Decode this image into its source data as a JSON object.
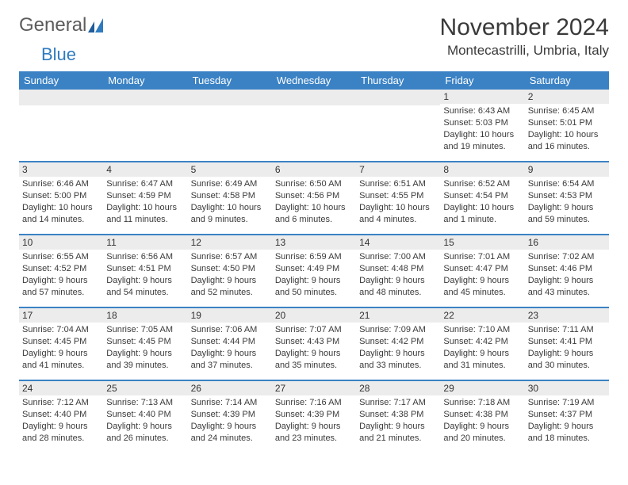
{
  "logo": {
    "text1": "General",
    "text2": "Blue"
  },
  "title": "November 2024",
  "location": "Montecastrilli, Umbria, Italy",
  "colors": {
    "header_bg": "#3b82c4",
    "header_text": "#ffffff",
    "daynum_bg": "#ececec",
    "border": "#3b82c4",
    "text": "#3a3a3a"
  },
  "day_headers": [
    "Sunday",
    "Monday",
    "Tuesday",
    "Wednesday",
    "Thursday",
    "Friday",
    "Saturday"
  ],
  "weeks": [
    [
      {
        "day": "",
        "sunrise": "",
        "sunset": "",
        "daylight": ""
      },
      {
        "day": "",
        "sunrise": "",
        "sunset": "",
        "daylight": ""
      },
      {
        "day": "",
        "sunrise": "",
        "sunset": "",
        "daylight": ""
      },
      {
        "day": "",
        "sunrise": "",
        "sunset": "",
        "daylight": ""
      },
      {
        "day": "",
        "sunrise": "",
        "sunset": "",
        "daylight": ""
      },
      {
        "day": "1",
        "sunrise": "Sunrise: 6:43 AM",
        "sunset": "Sunset: 5:03 PM",
        "daylight": "Daylight: 10 hours and 19 minutes."
      },
      {
        "day": "2",
        "sunrise": "Sunrise: 6:45 AM",
        "sunset": "Sunset: 5:01 PM",
        "daylight": "Daylight: 10 hours and 16 minutes."
      }
    ],
    [
      {
        "day": "3",
        "sunrise": "Sunrise: 6:46 AM",
        "sunset": "Sunset: 5:00 PM",
        "daylight": "Daylight: 10 hours and 14 minutes."
      },
      {
        "day": "4",
        "sunrise": "Sunrise: 6:47 AM",
        "sunset": "Sunset: 4:59 PM",
        "daylight": "Daylight: 10 hours and 11 minutes."
      },
      {
        "day": "5",
        "sunrise": "Sunrise: 6:49 AM",
        "sunset": "Sunset: 4:58 PM",
        "daylight": "Daylight: 10 hours and 9 minutes."
      },
      {
        "day": "6",
        "sunrise": "Sunrise: 6:50 AM",
        "sunset": "Sunset: 4:56 PM",
        "daylight": "Daylight: 10 hours and 6 minutes."
      },
      {
        "day": "7",
        "sunrise": "Sunrise: 6:51 AM",
        "sunset": "Sunset: 4:55 PM",
        "daylight": "Daylight: 10 hours and 4 minutes."
      },
      {
        "day": "8",
        "sunrise": "Sunrise: 6:52 AM",
        "sunset": "Sunset: 4:54 PM",
        "daylight": "Daylight: 10 hours and 1 minute."
      },
      {
        "day": "9",
        "sunrise": "Sunrise: 6:54 AM",
        "sunset": "Sunset: 4:53 PM",
        "daylight": "Daylight: 9 hours and 59 minutes."
      }
    ],
    [
      {
        "day": "10",
        "sunrise": "Sunrise: 6:55 AM",
        "sunset": "Sunset: 4:52 PM",
        "daylight": "Daylight: 9 hours and 57 minutes."
      },
      {
        "day": "11",
        "sunrise": "Sunrise: 6:56 AM",
        "sunset": "Sunset: 4:51 PM",
        "daylight": "Daylight: 9 hours and 54 minutes."
      },
      {
        "day": "12",
        "sunrise": "Sunrise: 6:57 AM",
        "sunset": "Sunset: 4:50 PM",
        "daylight": "Daylight: 9 hours and 52 minutes."
      },
      {
        "day": "13",
        "sunrise": "Sunrise: 6:59 AM",
        "sunset": "Sunset: 4:49 PM",
        "daylight": "Daylight: 9 hours and 50 minutes."
      },
      {
        "day": "14",
        "sunrise": "Sunrise: 7:00 AM",
        "sunset": "Sunset: 4:48 PM",
        "daylight": "Daylight: 9 hours and 48 minutes."
      },
      {
        "day": "15",
        "sunrise": "Sunrise: 7:01 AM",
        "sunset": "Sunset: 4:47 PM",
        "daylight": "Daylight: 9 hours and 45 minutes."
      },
      {
        "day": "16",
        "sunrise": "Sunrise: 7:02 AM",
        "sunset": "Sunset: 4:46 PM",
        "daylight": "Daylight: 9 hours and 43 minutes."
      }
    ],
    [
      {
        "day": "17",
        "sunrise": "Sunrise: 7:04 AM",
        "sunset": "Sunset: 4:45 PM",
        "daylight": "Daylight: 9 hours and 41 minutes."
      },
      {
        "day": "18",
        "sunrise": "Sunrise: 7:05 AM",
        "sunset": "Sunset: 4:45 PM",
        "daylight": "Daylight: 9 hours and 39 minutes."
      },
      {
        "day": "19",
        "sunrise": "Sunrise: 7:06 AM",
        "sunset": "Sunset: 4:44 PM",
        "daylight": "Daylight: 9 hours and 37 minutes."
      },
      {
        "day": "20",
        "sunrise": "Sunrise: 7:07 AM",
        "sunset": "Sunset: 4:43 PM",
        "daylight": "Daylight: 9 hours and 35 minutes."
      },
      {
        "day": "21",
        "sunrise": "Sunrise: 7:09 AM",
        "sunset": "Sunset: 4:42 PM",
        "daylight": "Daylight: 9 hours and 33 minutes."
      },
      {
        "day": "22",
        "sunrise": "Sunrise: 7:10 AM",
        "sunset": "Sunset: 4:42 PM",
        "daylight": "Daylight: 9 hours and 31 minutes."
      },
      {
        "day": "23",
        "sunrise": "Sunrise: 7:11 AM",
        "sunset": "Sunset: 4:41 PM",
        "daylight": "Daylight: 9 hours and 30 minutes."
      }
    ],
    [
      {
        "day": "24",
        "sunrise": "Sunrise: 7:12 AM",
        "sunset": "Sunset: 4:40 PM",
        "daylight": "Daylight: 9 hours and 28 minutes."
      },
      {
        "day": "25",
        "sunrise": "Sunrise: 7:13 AM",
        "sunset": "Sunset: 4:40 PM",
        "daylight": "Daylight: 9 hours and 26 minutes."
      },
      {
        "day": "26",
        "sunrise": "Sunrise: 7:14 AM",
        "sunset": "Sunset: 4:39 PM",
        "daylight": "Daylight: 9 hours and 24 minutes."
      },
      {
        "day": "27",
        "sunrise": "Sunrise: 7:16 AM",
        "sunset": "Sunset: 4:39 PM",
        "daylight": "Daylight: 9 hours and 23 minutes."
      },
      {
        "day": "28",
        "sunrise": "Sunrise: 7:17 AM",
        "sunset": "Sunset: 4:38 PM",
        "daylight": "Daylight: 9 hours and 21 minutes."
      },
      {
        "day": "29",
        "sunrise": "Sunrise: 7:18 AM",
        "sunset": "Sunset: 4:38 PM",
        "daylight": "Daylight: 9 hours and 20 minutes."
      },
      {
        "day": "30",
        "sunrise": "Sunrise: 7:19 AM",
        "sunset": "Sunset: 4:37 PM",
        "daylight": "Daylight: 9 hours and 18 minutes."
      }
    ]
  ]
}
